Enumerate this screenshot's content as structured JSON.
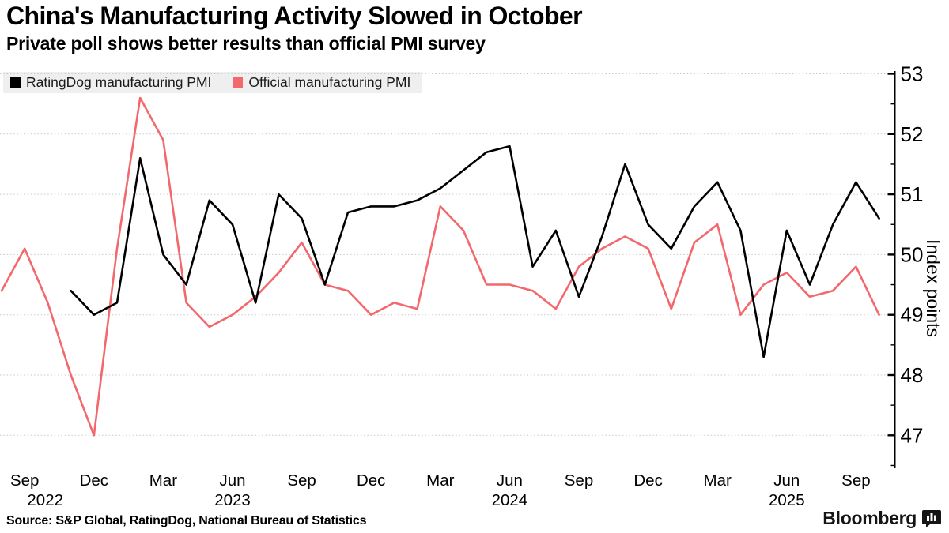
{
  "header": {
    "title": "China's Manufacturing Activity Slowed in October",
    "subtitle": "Private poll shows better results than official PMI survey"
  },
  "legend": {
    "items": [
      {
        "label": "RatingDog manufacturing PMI",
        "color": "#000000"
      },
      {
        "label": "Official manufacturing PMI",
        "color": "#F2686C"
      }
    ]
  },
  "footer": {
    "source": "Source: S&P Global, RatingDog, National Bureau of Statistics",
    "brand": "Bloomberg"
  },
  "colors": {
    "accent_red": "#F2686C",
    "series_black": "#000000",
    "gridline": "#c9c9c9",
    "legend_bg": "#efefef"
  },
  "chart_data": {
    "type": "line",
    "title": "China's Manufacturing Activity Slowed in October",
    "subtitle": "Private poll shows better results than official PMI survey",
    "ylabel": "Index points",
    "ylim": [
      46.5,
      53.3
    ],
    "y_ticks": [
      47,
      48,
      49,
      50,
      51,
      52,
      53
    ],
    "y_minor_tick_step": 0.5,
    "grid": "horizontal-dashed",
    "legend_position": "top-left",
    "y_axis_side": "right",
    "x_unit": "month",
    "x_start_month": "Aug 2022",
    "x_end_month": "Oct 2025",
    "x_ticks": [
      {
        "index": 1,
        "label": "Sep",
        "year": "2022"
      },
      {
        "index": 4,
        "label": "Dec"
      },
      {
        "index": 7,
        "label": "Mar"
      },
      {
        "index": 10,
        "label": "Jun",
        "year": "2023"
      },
      {
        "index": 13,
        "label": "Sep"
      },
      {
        "index": 16,
        "label": "Dec"
      },
      {
        "index": 19,
        "label": "Mar"
      },
      {
        "index": 22,
        "label": "Jun",
        "year": "2024"
      },
      {
        "index": 25,
        "label": "Sep"
      },
      {
        "index": 28,
        "label": "Dec"
      },
      {
        "index": 31,
        "label": "Mar"
      },
      {
        "index": 34,
        "label": "Jun",
        "year": "2025"
      },
      {
        "index": 37,
        "label": "Sep"
      }
    ],
    "series": [
      {
        "name": "RatingDog manufacturing PMI",
        "color": "#000000",
        "start_index": 3,
        "start_month": "Nov 2022",
        "values": [
          49.4,
          49.0,
          49.2,
          51.6,
          50.0,
          49.5,
          50.9,
          50.5,
          49.2,
          51.0,
          50.6,
          49.5,
          50.7,
          50.8,
          50.8,
          50.9,
          51.1,
          51.4,
          51.7,
          51.8,
          49.8,
          50.4,
          49.3,
          50.3,
          51.5,
          50.5,
          50.1,
          50.8,
          51.2,
          50.4,
          48.3,
          50.4,
          49.5,
          50.5,
          51.2,
          50.6
        ]
      },
      {
        "name": "Official manufacturing PMI",
        "color": "#F2686C",
        "start_index": 0,
        "start_month": "Aug 2022",
        "values": [
          49.4,
          50.1,
          49.2,
          48.0,
          47.0,
          50.1,
          52.6,
          51.9,
          49.2,
          48.8,
          49.0,
          49.3,
          49.7,
          50.2,
          49.5,
          49.4,
          49.0,
          49.2,
          49.1,
          50.8,
          50.4,
          49.5,
          49.5,
          49.4,
          49.1,
          49.8,
          50.1,
          50.3,
          50.1,
          49.1,
          50.2,
          50.5,
          49.0,
          49.5,
          49.7,
          49.3,
          49.4,
          49.8,
          49.0
        ]
      }
    ]
  }
}
